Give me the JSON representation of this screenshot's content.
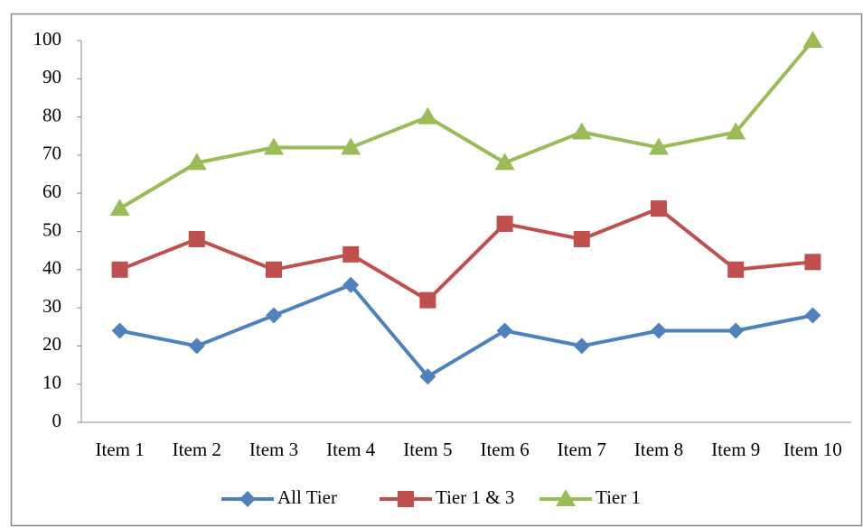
{
  "chart_data": {
    "type": "line",
    "categories": [
      "Item 1",
      "Item 2",
      "Item 3",
      "Item 4",
      "Item 5",
      "Item 6",
      "Item 7",
      "Item 8",
      "Item 9",
      "Item 10"
    ],
    "series": [
      {
        "name": "All Tier",
        "color": "#4f81bd",
        "marker": "diamond",
        "values": [
          24,
          20,
          28,
          36,
          12,
          24,
          20,
          24,
          24,
          28
        ]
      },
      {
        "name": "Tier 1 & 3",
        "color": "#c0504d",
        "marker": "square",
        "values": [
          40,
          48,
          40,
          44,
          32,
          52,
          48,
          56,
          40,
          42
        ]
      },
      {
        "name": "Tier 1",
        "color": "#9bbb59",
        "marker": "triangle",
        "values": [
          56,
          68,
          72,
          72,
          80,
          68,
          76,
          72,
          76,
          100
        ]
      }
    ],
    "ylim": [
      0,
      100
    ],
    "yticks": [
      0,
      10,
      20,
      30,
      40,
      50,
      60,
      70,
      80,
      90,
      100
    ],
    "grid": false,
    "legend": "bottom"
  }
}
